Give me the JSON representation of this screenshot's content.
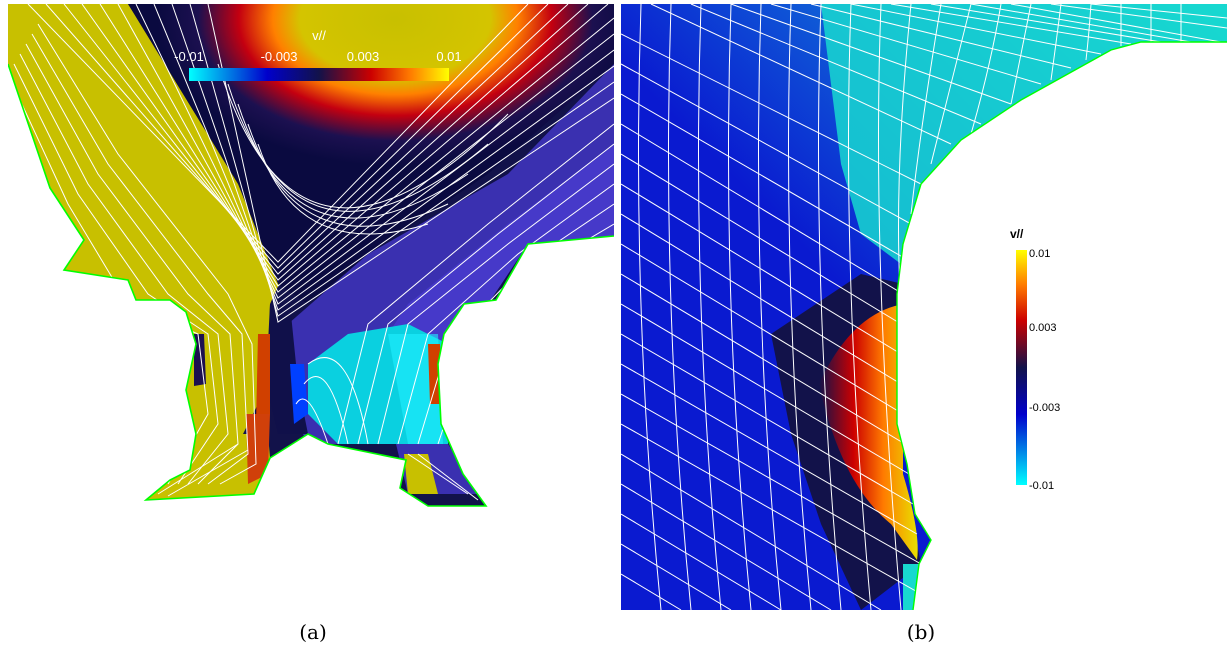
{
  "panel_a": {
    "caption": "(a)",
    "colorbar": {
      "title": "v//",
      "ticks": [
        "-0.01",
        "-0.003",
        "0.003",
        "0.01"
      ]
    }
  },
  "panel_b": {
    "caption": "(b)",
    "colorbar": {
      "title": "v//",
      "ticks": [
        "0.01",
        "0.003",
        "-0.003",
        "-0.01"
      ]
    }
  },
  "colormap": [
    "#00ffff",
    "#0000cc",
    "#12124a",
    "#cc0000",
    "#ff7a00",
    "#ffff00"
  ],
  "boundary_color": "#00ff00",
  "field_line_color": "#ffffff"
}
